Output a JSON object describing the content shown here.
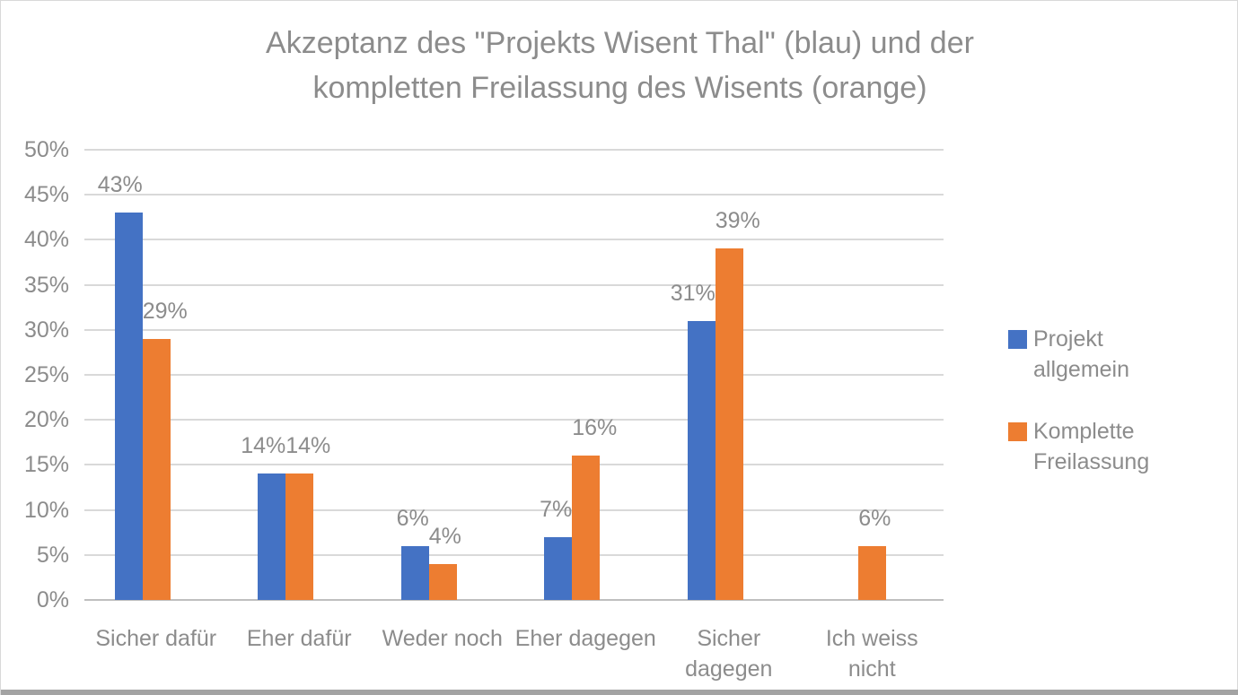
{
  "page": {
    "background": "#ffffff",
    "frame_border_color": "#d9d9d9",
    "bottom_strip_color": "#a3a3a3",
    "text_color": "#8c8c8c"
  },
  "chart_data": {
    "type": "bar",
    "title": "Akzeptanz des \"Projekts Wisent Thal\" (blau) und der kompletten Freilassung des Wisents (orange)",
    "title_lines": [
      "Akzeptanz des \"Projekts Wisent Thal\" (blau) und der",
      "kompletten Freilassung des Wisents (orange)"
    ],
    "categories": [
      "Sicher dafür",
      "Eher dafür",
      "Weder noch",
      "Eher dagegen",
      "Sicher dagegen",
      "Ich weiss nicht"
    ],
    "category_label_lines": [
      [
        "Sicher dafür"
      ],
      [
        "Eher dafür"
      ],
      [
        "Weder noch"
      ],
      [
        "Eher dagegen"
      ],
      [
        "Sicher",
        "dagegen"
      ],
      [
        "Ich weiss",
        "nicht"
      ]
    ],
    "series": [
      {
        "name": "Projekt allgemein",
        "legend_lines": [
          "Projekt",
          "allgemein"
        ],
        "color": "#4472c4",
        "values": [
          43,
          14,
          6,
          7,
          31,
          0
        ]
      },
      {
        "name": "Komplette Freilassung",
        "legend_lines": [
          "Komplette",
          "Freilassung"
        ],
        "color": "#ed7d31",
        "values": [
          29,
          14,
          4,
          16,
          39,
          6
        ]
      }
    ],
    "data_labels": [
      [
        "43%",
        "14%",
        "6%",
        "7%",
        "31%",
        ""
      ],
      [
        "29%",
        "14%",
        "4%",
        "16%",
        "39%",
        "6%"
      ]
    ],
    "value_suffix": "%",
    "y_axis": {
      "min": 0,
      "max": 50,
      "step": 5,
      "tick_labels": [
        "0%",
        "5%",
        "10%",
        "15%",
        "20%",
        "25%",
        "30%",
        "35%",
        "40%",
        "45%",
        "50%"
      ]
    },
    "ylim": [
      0,
      50
    ],
    "grid": true,
    "gridline_color": "#d9d9d9",
    "axis_line_color": "#bfbfbf",
    "legend_position": "right",
    "show_data_labels": true
  }
}
